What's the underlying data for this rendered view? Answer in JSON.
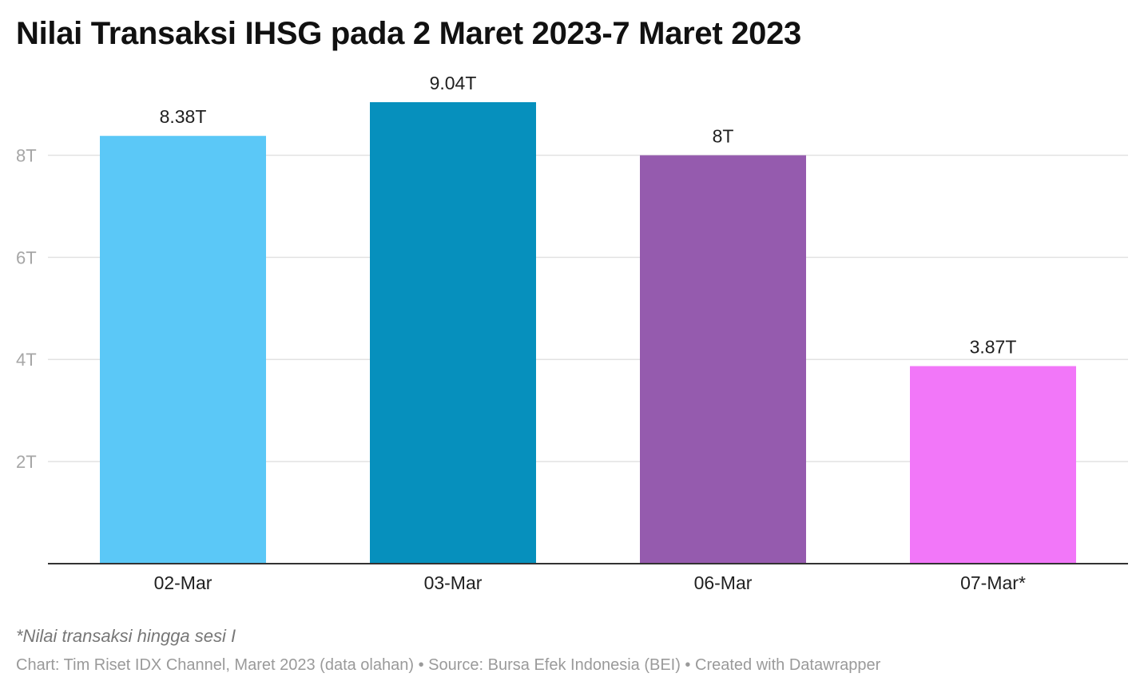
{
  "title": "Nilai Transaksi IHSG pada 2 Maret 2023-7 Maret 2023",
  "chart_data": {
    "type": "bar",
    "categories": [
      "02-Mar",
      "03-Mar",
      "06-Mar",
      "07-Mar*"
    ],
    "values": [
      8.38,
      9.04,
      8.0,
      3.87
    ],
    "value_labels": [
      "8.38T",
      "9.04T",
      "8T",
      "3.87T"
    ],
    "colors": [
      "#5bc8f7",
      "#0690bd",
      "#955bae",
      "#f277f9"
    ],
    "yticks": [
      2,
      4,
      6,
      8
    ],
    "ytick_labels": [
      "2T",
      "4T",
      "6T",
      "8T"
    ],
    "ylim": [
      0,
      9.04
    ],
    "grid": true,
    "xlabel": "",
    "ylabel": ""
  },
  "footnote": "*Nilai transaksi hingga sesi I",
  "credits": {
    "chart": "Chart: Tim Riset IDX Channel, Maret 2023 (data olahan)",
    "source": "Source: Bursa Efek Indonesia (BEI)",
    "created": "Created with Datawrapper",
    "separator": " • "
  }
}
